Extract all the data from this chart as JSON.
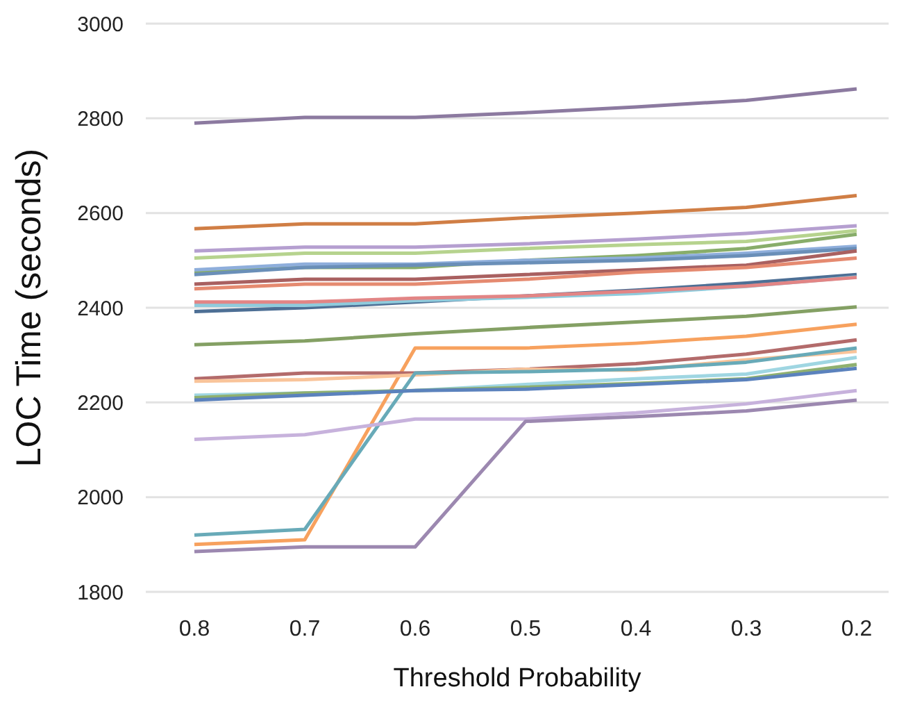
{
  "chart_data": {
    "type": "line",
    "xlabel": "Threshold Probability",
    "ylabel": "LOC Time (seconds)",
    "categories": [
      "0.8",
      "0.7",
      "0.6",
      "0.5",
      "0.4",
      "0.3",
      "0.2"
    ],
    "ylim": [
      1800,
      3000
    ],
    "yticks": [
      1800,
      2000,
      2200,
      2400,
      2600,
      2800,
      3000
    ],
    "grid": "y",
    "legend": false,
    "marker": "none",
    "line_style": "solid",
    "series": [
      {
        "color": "#8c7aa0",
        "values": [
          2790,
          2802,
          2802,
          2812,
          2824,
          2838,
          2862
        ]
      },
      {
        "color": "#d07e45",
        "values": [
          2567,
          2577,
          2577,
          2590,
          2600,
          2612,
          2637
        ]
      },
      {
        "color": "#b59fd0",
        "values": [
          2520,
          2528,
          2528,
          2535,
          2545,
          2557,
          2573
        ]
      },
      {
        "color": "#b6d38e",
        "values": [
          2505,
          2515,
          2515,
          2525,
          2533,
          2540,
          2563
        ]
      },
      {
        "color": "#88ad6a",
        "values": [
          2475,
          2485,
          2485,
          2500,
          2510,
          2525,
          2555
        ]
      },
      {
        "color": "#8eaedb",
        "values": [
          2480,
          2492,
          2492,
          2500,
          2505,
          2515,
          2530
        ]
      },
      {
        "color": "#6a8fb8",
        "values": [
          2470,
          2485,
          2490,
          2495,
          2500,
          2510,
          2525
        ]
      },
      {
        "color": "#a96060",
        "values": [
          2450,
          2460,
          2460,
          2470,
          2480,
          2490,
          2520
        ]
      },
      {
        "color": "#e58a70",
        "values": [
          2440,
          2450,
          2450,
          2460,
          2475,
          2485,
          2505
        ]
      },
      {
        "color": "#4d6f95",
        "values": [
          2392,
          2400,
          2412,
          2425,
          2437,
          2452,
          2470
        ]
      },
      {
        "color": "#8fcbdc",
        "values": [
          2405,
          2405,
          2415,
          2422,
          2430,
          2445,
          2465
        ]
      },
      {
        "color": "#84a064",
        "values": [
          2322,
          2330,
          2345,
          2358,
          2370,
          2382,
          2402
        ]
      },
      {
        "color": "#f7a15e",
        "values": [
          1900,
          1910,
          2315,
          2315,
          2325,
          2340,
          2365
        ]
      },
      {
        "color": "#b36b6b",
        "values": [
          2250,
          2262,
          2262,
          2270,
          2282,
          2302,
          2332
        ]
      },
      {
        "color": "#f9c49a",
        "values": [
          2245,
          2248,
          2258,
          2270,
          2268,
          2290,
          2308
        ]
      },
      {
        "color": "#68aab8",
        "values": [
          1920,
          1932,
          2262,
          2265,
          2270,
          2285,
          2315
        ]
      },
      {
        "color": "#9fd6e2",
        "values": [
          2215,
          2220,
          2225,
          2238,
          2250,
          2260,
          2295
        ]
      },
      {
        "color": "#8fb070",
        "values": [
          2210,
          2220,
          2225,
          2232,
          2240,
          2250,
          2280
        ]
      },
      {
        "color": "#5b82bd",
        "values": [
          2205,
          2215,
          2225,
          2228,
          2238,
          2248,
          2272
        ]
      },
      {
        "color": "#c7b2dc",
        "values": [
          2122,
          2132,
          2165,
          2165,
          2178,
          2197,
          2225
        ]
      },
      {
        "color": "#9c88b0",
        "values": [
          1885,
          1895,
          1895,
          2160,
          2170,
          2182,
          2205
        ]
      },
      {
        "color": "#e28585",
        "values": [
          2412,
          2412,
          2420,
          2425,
          2435,
          2446,
          2464
        ]
      }
    ]
  }
}
